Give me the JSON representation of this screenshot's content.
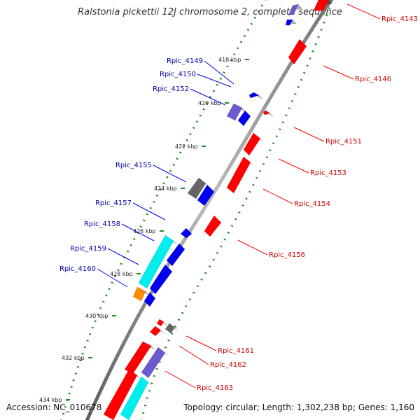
{
  "title": "Ralstonia pickettii 12J chromosome 2, complete sequence",
  "accession": "Accession: NC_010678",
  "topology": "Topology: circular; Length: 1,302,238 bp; Genes: 1,160",
  "colors": {
    "forward_strand": "#ff0000",
    "reverse_strand": "#0000ee",
    "label_forward": "#cc0000",
    "label_reverse": "#0000aa",
    "tick_dots": "#228b22",
    "backbone": "#888888",
    "cyan": "#00eeee",
    "orange": "#ff8c00",
    "gray": "#666666",
    "slate": "#6a5acd"
  },
  "kbp_ticks": [
    "418 kbp",
    "420 kbp",
    "422 kbp",
    "424 kbp",
    "426 kbp",
    "428 kbp",
    "430 kbp",
    "432 kbp",
    "434 kbp"
  ],
  "genes": [
    {
      "name": "Rpic_4143",
      "strand": "forward"
    },
    {
      "name": "Rpic_4146",
      "strand": "forward"
    },
    {
      "name": "Rpic_4149",
      "strand": "reverse"
    },
    {
      "name": "Rpic_4150",
      "strand": "reverse"
    },
    {
      "name": "Rpic_4151",
      "strand": "forward"
    },
    {
      "name": "Rpic_4152",
      "strand": "reverse"
    },
    {
      "name": "Rpic_4153",
      "strand": "forward"
    },
    {
      "name": "Rpic_4154",
      "strand": "forward"
    },
    {
      "name": "Rpic_4155",
      "strand": "reverse"
    },
    {
      "name": "Rpic_4156",
      "strand": "forward"
    },
    {
      "name": "Rpic_4157",
      "strand": "reverse"
    },
    {
      "name": "Rpic_4158",
      "strand": "reverse"
    },
    {
      "name": "Rpic_4159",
      "strand": "reverse"
    },
    {
      "name": "Rpic_4160",
      "strand": "reverse"
    },
    {
      "name": "Rpic_4161",
      "strand": "forward"
    },
    {
      "name": "Rpic_4162",
      "strand": "forward"
    },
    {
      "name": "Rpic_4163",
      "strand": "forward"
    }
  ]
}
